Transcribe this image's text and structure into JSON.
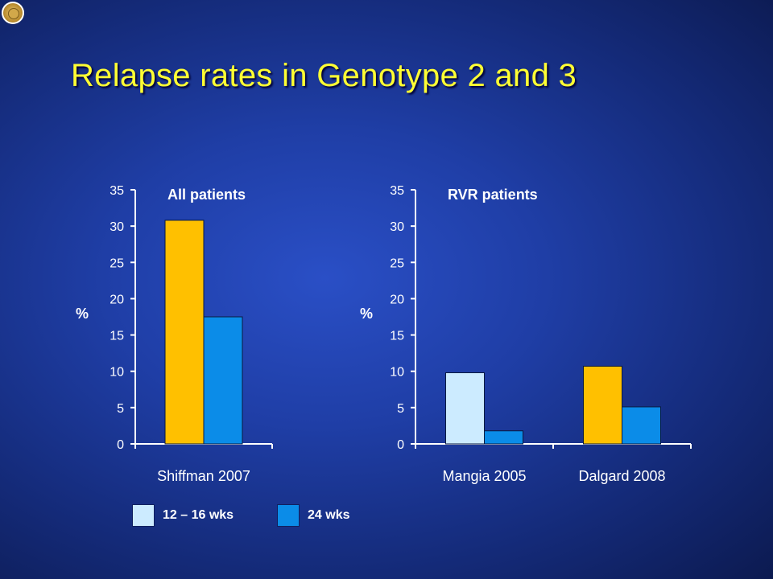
{
  "title": "Relapse rates in Genotype 2 and 3",
  "colors": {
    "short_yellow": "#FFC000",
    "short_light": "#CCEBFF",
    "long": "#0B8CE8",
    "title": "#FFFF33"
  },
  "legend": [
    {
      "label": "12 – 16  wks",
      "color": "#CCEBFF"
    },
    {
      "label": "24  wks",
      "color": "#0B8CE8"
    }
  ],
  "chart_data": [
    {
      "type": "bar",
      "title": "All patients",
      "ylabel": "%",
      "ylim": [
        0,
        35
      ],
      "yticks": [
        0,
        5,
        10,
        15,
        20,
        25,
        30,
        35
      ],
      "categories": [
        "Shiffman 2007"
      ],
      "series": [
        {
          "name": "12 – 16  wks",
          "values": [
            30.8
          ],
          "colors": [
            "#FFC000"
          ]
        },
        {
          "name": "24  wks",
          "values": [
            17.5
          ],
          "colors": [
            "#0B8CE8"
          ]
        }
      ],
      "grid": false
    },
    {
      "type": "bar",
      "title": "RVR patients",
      "ylabel": "%",
      "ylim": [
        0,
        35
      ],
      "yticks": [
        0,
        5,
        10,
        15,
        20,
        25,
        30,
        35
      ],
      "categories": [
        "Mangia 2005",
        "Dalgard 2008"
      ],
      "series": [
        {
          "name": "12 – 16  wks",
          "values": [
            9.8,
            10.7
          ],
          "colors": [
            "#CCEBFF",
            "#FFC000"
          ]
        },
        {
          "name": "24  wks",
          "values": [
            1.8,
            5.1
          ],
          "colors": [
            "#0B8CE8",
            "#0B8CE8"
          ]
        }
      ],
      "grid": false
    }
  ]
}
